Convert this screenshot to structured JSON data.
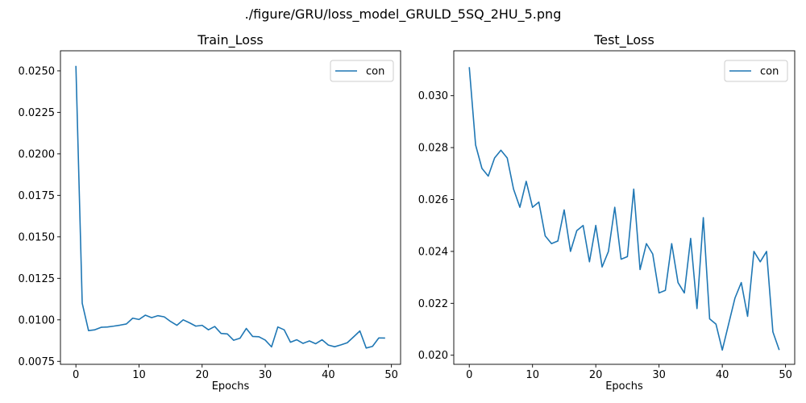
{
  "figure_title": "./figure/GRU/loss_model_GRULD_5SQ_2HU_5.png",
  "colors": {
    "series": "#1f77b4",
    "axes": "#000000",
    "legend_border": "#cccccc"
  },
  "chart_data": [
    {
      "type": "line",
      "title": "Train_Loss",
      "xlabel": "Epochs",
      "ylabel": "",
      "grid": false,
      "legend_position": "top-right",
      "xlim": [
        -2.45,
        51.45
      ],
      "ylim": [
        0.00732,
        0.02621
      ],
      "xticks": [
        0,
        10,
        20,
        30,
        40,
        50
      ],
      "xtick_labels": [
        "0",
        "10",
        "20",
        "30",
        "40",
        "50"
      ],
      "yticks": [
        0.0075,
        0.01,
        0.0125,
        0.015,
        0.0175,
        0.02,
        0.0225,
        0.025
      ],
      "ytick_labels": [
        "0.0075",
        "0.0100",
        "0.0125",
        "0.0150",
        "0.0175",
        "0.0200",
        "0.0225",
        "0.0250"
      ],
      "series": [
        {
          "name": "con",
          "x": [
            0,
            1,
            2,
            3,
            4,
            5,
            6,
            7,
            8,
            9,
            10,
            11,
            12,
            13,
            14,
            15,
            16,
            17,
            18,
            19,
            20,
            21,
            22,
            23,
            24,
            25,
            26,
            27,
            28,
            29,
            30,
            31,
            32,
            33,
            34,
            35,
            36,
            37,
            38,
            39,
            40,
            41,
            42,
            43,
            44,
            45,
            46,
            47,
            48,
            49
          ],
          "values": [
            0.0253,
            0.011,
            0.00935,
            0.0094,
            0.00955,
            0.00957,
            0.00962,
            0.00968,
            0.00975,
            0.0101,
            0.01002,
            0.01028,
            0.01013,
            0.01025,
            0.01018,
            0.0099,
            0.00967,
            0.01,
            0.00982,
            0.00962,
            0.00967,
            0.0094,
            0.0096,
            0.00918,
            0.00915,
            0.00877,
            0.00889,
            0.00948,
            0.009,
            0.00898,
            0.00878,
            0.00837,
            0.00957,
            0.0094,
            0.00865,
            0.0088,
            0.00858,
            0.00873,
            0.00856,
            0.0088,
            0.00848,
            0.00838,
            0.00849,
            0.00862,
            0.00897,
            0.00933,
            0.0083,
            0.0084,
            0.00891,
            0.0089
          ]
        }
      ]
    },
    {
      "type": "line",
      "title": "Test_Loss",
      "xlabel": "Epochs",
      "ylabel": "",
      "grid": false,
      "legend_position": "top-right",
      "xlim": [
        -2.45,
        51.45
      ],
      "ylim": [
        0.01965,
        0.03173
      ],
      "xticks": [
        0,
        10,
        20,
        30,
        40,
        50
      ],
      "xtick_labels": [
        "0",
        "10",
        "20",
        "30",
        "40",
        "50"
      ],
      "yticks": [
        0.02,
        0.022,
        0.024,
        0.026,
        0.028,
        0.03
      ],
      "ytick_labels": [
        "0.020",
        "0.022",
        "0.024",
        "0.026",
        "0.028",
        "0.030"
      ],
      "series": [
        {
          "name": "con",
          "x": [
            0,
            1,
            2,
            3,
            4,
            5,
            6,
            7,
            8,
            9,
            10,
            11,
            12,
            13,
            14,
            15,
            16,
            17,
            18,
            19,
            20,
            21,
            22,
            23,
            24,
            25,
            26,
            27,
            28,
            29,
            30,
            31,
            32,
            33,
            34,
            35,
            36,
            37,
            38,
            39,
            40,
            41,
            42,
            43,
            44,
            45,
            46,
            47,
            48,
            49
          ],
          "values": [
            0.0311,
            0.0281,
            0.0272,
            0.0269,
            0.0276,
            0.0279,
            0.0276,
            0.0264,
            0.0257,
            0.0267,
            0.0257,
            0.0259,
            0.0246,
            0.0243,
            0.0244,
            0.0256,
            0.024,
            0.0248,
            0.025,
            0.0236,
            0.025,
            0.0234,
            0.024,
            0.0257,
            0.0237,
            0.0238,
            0.0264,
            0.0233,
            0.0243,
            0.0239,
            0.0224,
            0.0225,
            0.0243,
            0.0228,
            0.0224,
            0.0245,
            0.0218,
            0.0253,
            0.0214,
            0.0212,
            0.0202,
            0.0212,
            0.0222,
            0.0228,
            0.0215,
            0.024,
            0.0236,
            0.024,
            0.0209,
            0.0202
          ]
        }
      ]
    }
  ]
}
